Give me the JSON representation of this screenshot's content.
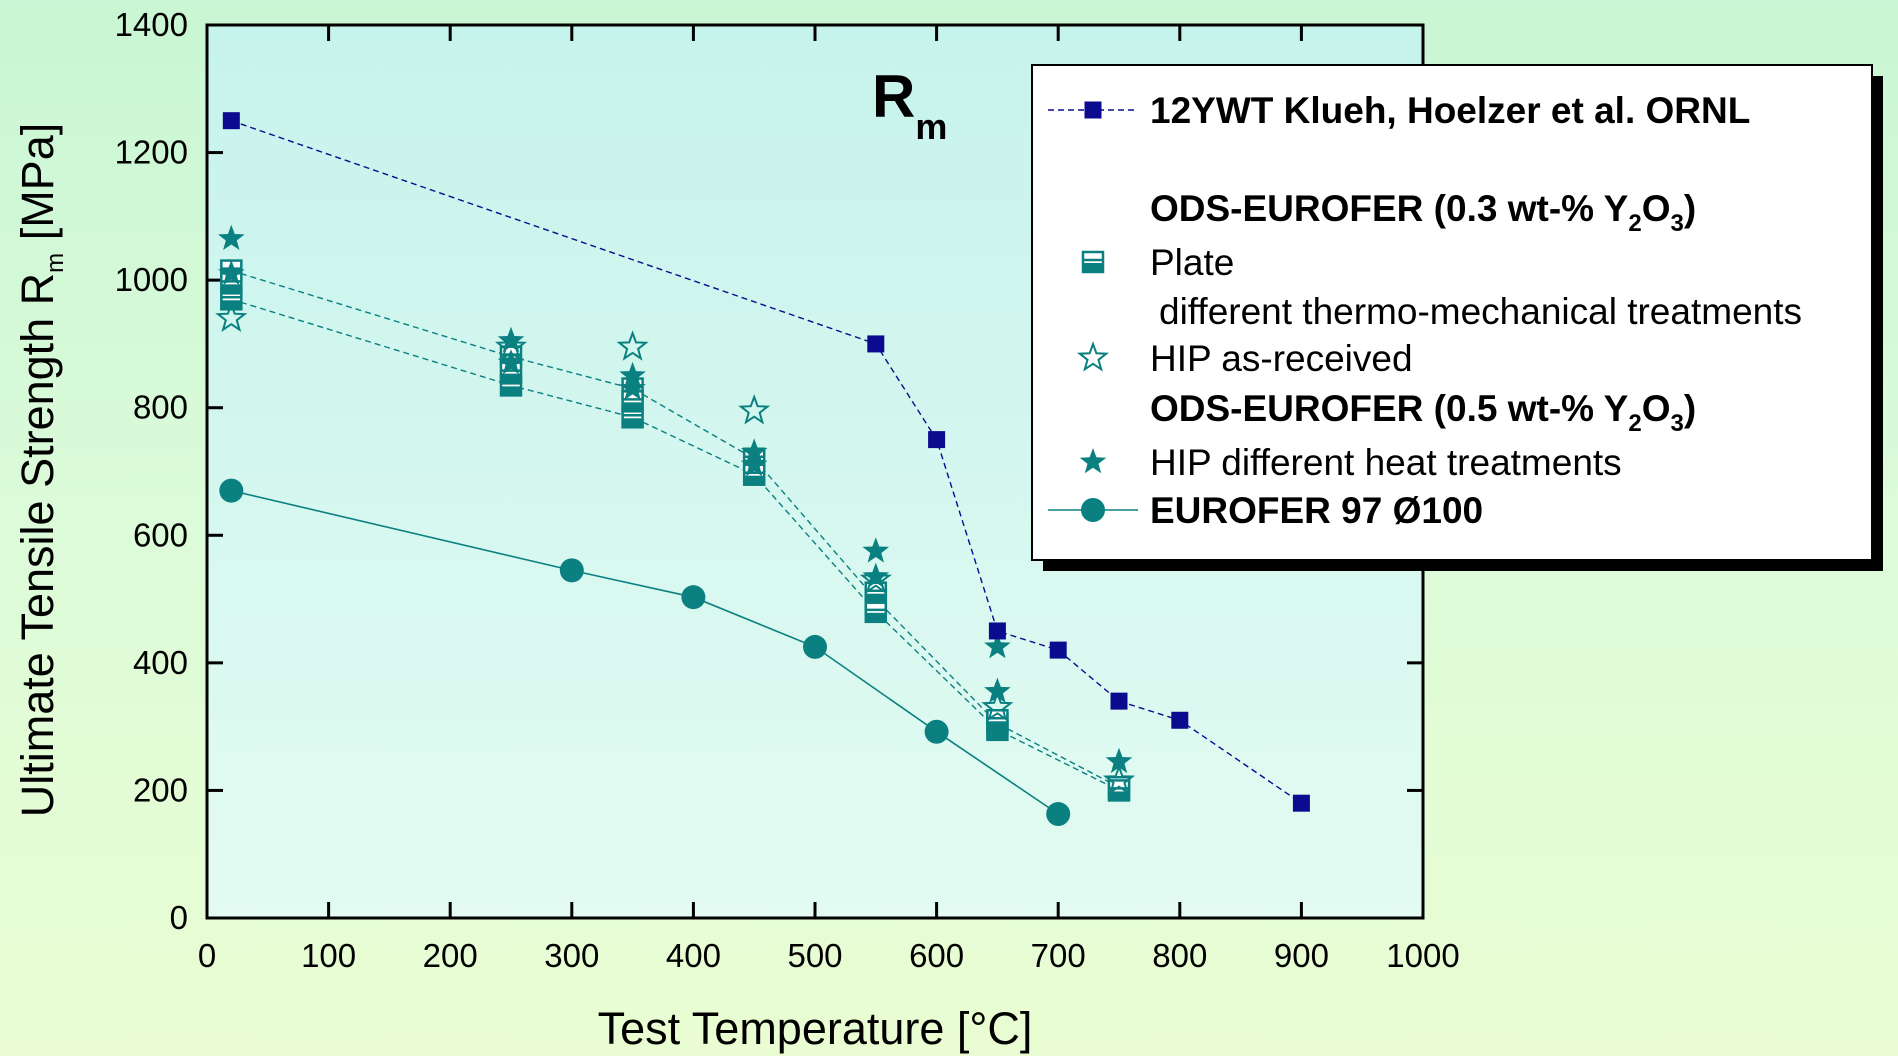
{
  "chart_data": {
    "type": "scatter",
    "annotation": {
      "main": "R",
      "sub": "m"
    },
    "xlabel": "Test Temperature [°C]",
    "ylabel": {
      "main": "Ultimate Tensile Strength R",
      "sub": "m",
      "unit": " [MPa]"
    },
    "xlim": [
      0,
      1000
    ],
    "ylim": [
      0,
      1400
    ],
    "x_ticks": [
      "0",
      "100",
      "200",
      "300",
      "400",
      "500",
      "600",
      "700",
      "800",
      "900",
      "1000"
    ],
    "y_ticks": [
      "0",
      "200",
      "400",
      "600",
      "800",
      "1000",
      "1200",
      "1400"
    ],
    "grid": false,
    "legend_position": "top-right",
    "colors": {
      "navy": "#0b0b8f",
      "teal": "#0b8080",
      "plot_bg_top": "#c6f3ec",
      "plot_bg_bottom": "#e3fbf2"
    },
    "series": [
      {
        "name": "12YWT Klueh, Hoelzer et al. ORNL",
        "marker": "square",
        "color": "#0b0b8f",
        "line": "dashed",
        "x": [
          20,
          550,
          600,
          650,
          700,
          750,
          800,
          900
        ],
        "y": [
          1250,
          900,
          750,
          450,
          420,
          340,
          310,
          180
        ]
      },
      {
        "name": "Plate",
        "marker": "square-half",
        "color": "#0b8080",
        "line": "dashed",
        "x": [
          20,
          250,
          350,
          450,
          550,
          650,
          750
        ],
        "y": [
          1015,
          880,
          830,
          720,
          500,
          305,
          205
        ]
      },
      {
        "name": "Plate",
        "marker": "square-half",
        "color": "#0b8080",
        "line": "dashed",
        "x": [
          20,
          250,
          350,
          450,
          550,
          650,
          750
        ],
        "y": [
          970,
          835,
          785,
          695,
          480,
          295,
          200
        ]
      },
      {
        "name": "Plate",
        "marker": "square-half",
        "color": "#0b8080",
        "line": "none",
        "x": [
          20,
          250,
          350,
          550,
          650
        ],
        "y": [
          995,
          855,
          810,
          510,
          310
        ]
      },
      {
        "name": "HIP as-received",
        "marker": "star-open",
        "color": "#0b8080",
        "line": "none",
        "x": [
          20,
          250,
          350,
          450,
          550,
          650,
          750
        ],
        "y": [
          940,
          895,
          895,
          795,
          530,
          330,
          215
        ]
      },
      {
        "name": "HIP different heat treatments",
        "marker": "star",
        "color": "#0b8080",
        "line": "none",
        "x": [
          20,
          20,
          250,
          250,
          350,
          350,
          450,
          450,
          550,
          550,
          650,
          650,
          750
        ],
        "y": [
          1065,
          1010,
          905,
          870,
          850,
          830,
          730,
          710,
          575,
          535,
          425,
          355,
          245
        ]
      },
      {
        "name": "EUROFER 97 Ø100",
        "marker": "circle",
        "color": "#0b8080",
        "line": "solid",
        "x": [
          20,
          300,
          400,
          500,
          600,
          700
        ],
        "y": [
          670,
          545,
          503,
          425,
          292,
          163
        ]
      }
    ],
    "legend": [
      {
        "kind": "entry",
        "text": "12YWT Klueh, Hoelzer et al. ORNL",
        "bold": true,
        "marker": "square",
        "color": "#0b0b8f",
        "line": "dashed"
      },
      {
        "kind": "heading",
        "text": "ODS-EUROFER (0.3 wt-% Y",
        "sub1": "2",
        "mid": "O",
        "sub2": "3",
        "end": ")"
      },
      {
        "kind": "entry",
        "text": "Plate",
        "bold": false,
        "marker": "square-half",
        "color": "#0b8080",
        "line": "none"
      },
      {
        "kind": "note",
        "text": "different thermo-mechanical treatments"
      },
      {
        "kind": "entry",
        "text": "HIP as-received",
        "bold": false,
        "marker": "star-open",
        "color": "#0b8080",
        "line": "none"
      },
      {
        "kind": "heading",
        "text": "ODS-EUROFER (0.5 wt-% Y",
        "sub1": "2",
        "mid": "O",
        "sub2": "3",
        "end": ")"
      },
      {
        "kind": "entry",
        "text": "HIP different heat treatments",
        "bold": false,
        "marker": "star",
        "color": "#0b8080",
        "line": "none"
      },
      {
        "kind": "entry",
        "text": "EUROFER 97 Ø100",
        "bold": true,
        "marker": "circle",
        "color": "#0b8080",
        "line": "solid"
      }
    ]
  }
}
